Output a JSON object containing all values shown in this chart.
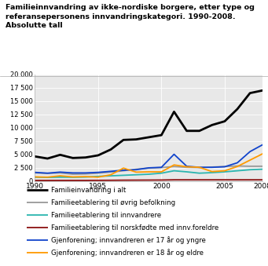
{
  "title_line1": "Familieinnvandring av ikke-nordiske borgere, etter type og",
  "title_line2": "referansepersonens innvandringskategori. 1990-2008.",
  "title_line3": "Absolutte tall",
  "years": [
    1990,
    1991,
    1992,
    1993,
    1994,
    1995,
    1996,
    1997,
    1998,
    1999,
    2000,
    2001,
    2002,
    2003,
    2004,
    2005,
    2006,
    2007,
    2008
  ],
  "series": {
    "Familieinvandring i alt": [
      4600,
      4200,
      4900,
      4300,
      4400,
      4800,
      5900,
      7700,
      7800,
      8200,
      8600,
      13000,
      9400,
      9400,
      10500,
      11200,
      13500,
      16500,
      17000
    ],
    "Familieetablering til øvrig befolkning": [
      1500,
      1400,
      1500,
      1250,
      1300,
      1450,
      1650,
      1900,
      2200,
      2400,
      2500,
      2700,
      2550,
      2500,
      2600,
      2700,
      2800,
      2750,
      2750
    ],
    "Familieetablering til innvandrere": [
      700,
      650,
      700,
      680,
      720,
      850,
      950,
      1050,
      1150,
      1250,
      1450,
      1900,
      1700,
      1450,
      1550,
      1700,
      1900,
      2100,
      2200
    ],
    "Familieetablering til norskfødte med innv.foreldre": [
      80,
      80,
      90,
      90,
      90,
      100,
      110,
      130,
      140,
      150,
      160,
      200,
      200,
      200,
      200,
      200,
      200,
      200,
      200
    ],
    "Gjenforening; innvandreren er 17 år og yngre": [
      1600,
      1450,
      1650,
      1500,
      1500,
      1600,
      1800,
      2000,
      2100,
      2450,
      2550,
      5000,
      2750,
      2550,
      2550,
      2650,
      3400,
      5500,
      6800
    ],
    "Gjenforening; innvandreren er 18 år og eldre": [
      750,
      700,
      950,
      750,
      800,
      700,
      1150,
      2400,
      1650,
      1700,
      1700,
      3000,
      2650,
      2550,
      1750,
      1900,
      2700,
      3900,
      5100
    ]
  },
  "colors": {
    "Familieinvandring i alt": "#000000",
    "Familieetablering til øvrig befolkning": "#999999",
    "Familieetablering til innvandrere": "#2ab5af",
    "Familieetablering til norskfødte med innv.foreldre": "#8b1010",
    "Gjenforening; innvandreren er 17 år og yngre": "#1144cc",
    "Gjenforening; innvandreren er 18 år og eldre": "#ff9900"
  },
  "linewidths": {
    "Familieinvandring i alt": 2.0,
    "Familieetablering til øvrig befolkning": 1.3,
    "Familieetablering til innvandrere": 1.3,
    "Familieetablering til norskfødte med innv.foreldre": 1.3,
    "Gjenforening; innvandreren er 17 år og yngre": 1.3,
    "Gjenforening; innvandreren er 18 år og eldre": 1.3
  },
  "ylim": [
    0,
    20000
  ],
  "yticks": [
    0,
    2500,
    5000,
    7500,
    10000,
    12500,
    15000,
    17500,
    20000
  ],
  "ytick_labels": [
    "0",
    "2 500",
    "5 000",
    "7 500",
    "10 000",
    "12 500",
    "15 000",
    "17 500",
    "20 000"
  ],
  "xticks": [
    1990,
    1995,
    2000,
    2005,
    2008
  ],
  "legend_labels": [
    "Familieinvandring i alt",
    "Familieetablering til øvrig befolkning",
    "Familieetablering til innvandrere",
    "Familieetablering til norskfødte med innv.foreldre",
    "Gjenforening; innvandreren er 17 år og yngre",
    "Gjenforening; innvandreren er 18 år og eldre"
  ]
}
